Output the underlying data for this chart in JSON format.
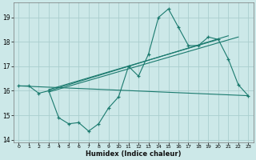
{
  "xlabel": "Humidex (Indice chaleur)",
  "bg_color": "#cce8e8",
  "line_color": "#1a7a6e",
  "grid_color": "#aacece",
  "xlim": [
    -0.5,
    23.5
  ],
  "ylim": [
    13.9,
    19.6
  ],
  "yticks": [
    14,
    15,
    16,
    17,
    18,
    19
  ],
  "xticks": [
    0,
    1,
    2,
    3,
    4,
    5,
    6,
    7,
    8,
    9,
    10,
    11,
    12,
    13,
    14,
    15,
    16,
    17,
    18,
    19,
    20,
    21,
    22,
    23
  ],
  "main_line_x": [
    0,
    1,
    2,
    3,
    4,
    5,
    6,
    7,
    8,
    9,
    10,
    11,
    12,
    13,
    14,
    15,
    16,
    17,
    18,
    19,
    20,
    21,
    22,
    23
  ],
  "main_line_y": [
    16.2,
    16.2,
    15.9,
    16.0,
    14.9,
    14.65,
    14.7,
    14.35,
    14.65,
    15.3,
    15.75,
    17.0,
    16.6,
    17.5,
    19.0,
    19.35,
    18.6,
    17.85,
    17.85,
    18.2,
    18.1,
    17.3,
    16.25,
    15.8
  ],
  "flat_line_x": [
    0,
    23
  ],
  "flat_line_y": [
    16.2,
    15.8
  ],
  "diag_line1_x": [
    3,
    22
  ],
  "diag_line1_y": [
    15.95,
    18.2
  ],
  "diag_line2_x": [
    3,
    20
  ],
  "diag_line2_y": [
    16.05,
    18.1
  ],
  "diag_line3_x": [
    3,
    21
  ],
  "diag_line3_y": [
    16.0,
    18.25
  ]
}
